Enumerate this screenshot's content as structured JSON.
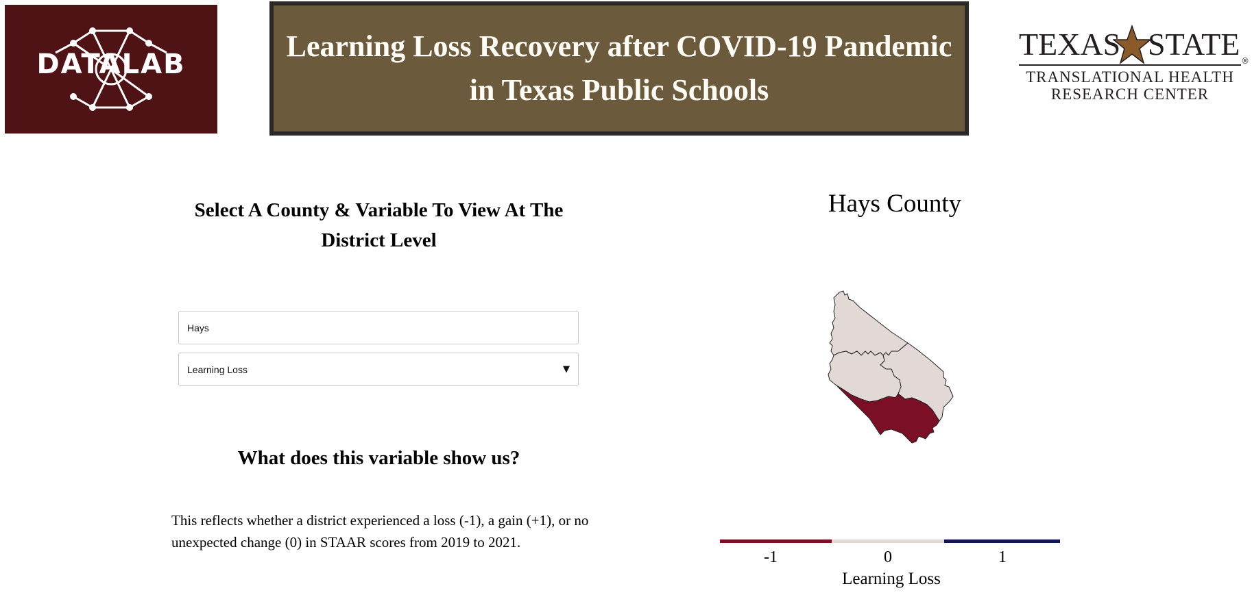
{
  "header": {
    "logo_left_text": "DATALAB",
    "title": "Learning Loss Recovery after COVID-19 Pandemic in Texas Public Schools",
    "logo_right": {
      "word_left": "TEXAS",
      "word_right": "STATE",
      "registered": "®",
      "subtitle_line1": "TRANSLATIONAL HEALTH",
      "subtitle_line2": "RESEARCH CENTER"
    },
    "colors": {
      "datalab_bg": "#4f1315",
      "banner_bg": "#6b5a3b",
      "banner_border": "#2c2a26"
    }
  },
  "controls": {
    "heading": "Select A County & Variable To View At The District Level",
    "county_value": "Hays",
    "variable_value": "Learning Loss",
    "variable_caret_icon": "triangle-down-icon"
  },
  "explanation": {
    "heading": "What does this variable show us?",
    "text": "This reflects whether a district experienced a loss (-1), a gain (+1), or no unexpected change (0) in STAAR scores from 2019 to 2021."
  },
  "map": {
    "title": "Hays County",
    "districts": [
      {
        "value": 0,
        "color": "#e2d8d6"
      },
      {
        "value": 0,
        "color": "#e2d8d6"
      },
      {
        "value": 0,
        "color": "#e2d8d6"
      },
      {
        "value": -1,
        "color": "#7b0f25"
      }
    ],
    "legend": {
      "title": "Learning Loss",
      "ticks": [
        "-1",
        "0",
        "1"
      ],
      "colors": [
        "#7b0f25",
        "#e2d8d6",
        "#13174f"
      ]
    }
  }
}
